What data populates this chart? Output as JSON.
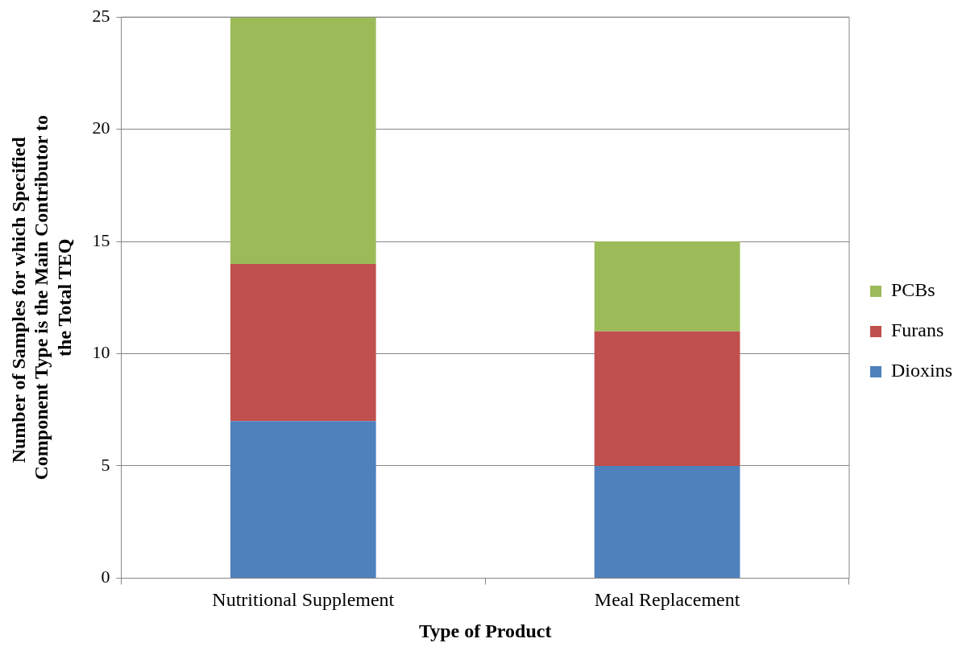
{
  "chart_data": {
    "type": "bar",
    "stacked": true,
    "xlabel": "Type of Product",
    "ylabel": "Number of Samples for which Specified  Component Type is the Main Contributor to the Total TEQ",
    "categories": [
      "Nutritional Supplement",
      "Meal Replacement"
    ],
    "series": [
      {
        "name": "Dioxins",
        "color": "#4f81bd",
        "values": [
          7,
          5
        ]
      },
      {
        "name": "Furans",
        "color": "#c0504d",
        "values": [
          7,
          6
        ]
      },
      {
        "name": "PCBs",
        "color": "#9bbb59",
        "values": [
          11,
          4
        ]
      }
    ],
    "ylim": [
      0,
      25
    ],
    "yticks": [
      0,
      5,
      10,
      15,
      20,
      25
    ],
    "grid": "y",
    "legend": "right"
  }
}
